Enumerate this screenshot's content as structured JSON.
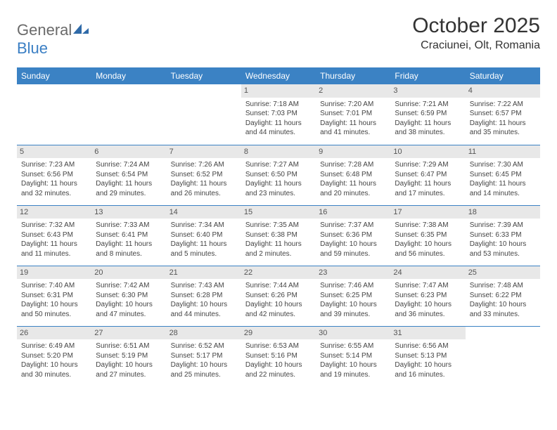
{
  "brand": {
    "part1": "General",
    "part2": "Blue"
  },
  "title": "October 2025",
  "location": "Craciunei, Olt, Romania",
  "colors": {
    "header_bg": "#3b82c4",
    "header_text": "#ffffff",
    "daynum_bg": "#e8e8e8",
    "border": "#3b82c4",
    "logo_gray": "#6a6a6a",
    "logo_blue": "#3b7fc4"
  },
  "weekdays": [
    "Sunday",
    "Monday",
    "Tuesday",
    "Wednesday",
    "Thursday",
    "Friday",
    "Saturday"
  ],
  "weeks": [
    [
      {
        "day": "",
        "lines": []
      },
      {
        "day": "",
        "lines": []
      },
      {
        "day": "",
        "lines": []
      },
      {
        "day": "1",
        "lines": [
          "Sunrise: 7:18 AM",
          "Sunset: 7:03 PM",
          "Daylight: 11 hours",
          "and 44 minutes."
        ]
      },
      {
        "day": "2",
        "lines": [
          "Sunrise: 7:20 AM",
          "Sunset: 7:01 PM",
          "Daylight: 11 hours",
          "and 41 minutes."
        ]
      },
      {
        "day": "3",
        "lines": [
          "Sunrise: 7:21 AM",
          "Sunset: 6:59 PM",
          "Daylight: 11 hours",
          "and 38 minutes."
        ]
      },
      {
        "day": "4",
        "lines": [
          "Sunrise: 7:22 AM",
          "Sunset: 6:57 PM",
          "Daylight: 11 hours",
          "and 35 minutes."
        ]
      }
    ],
    [
      {
        "day": "5",
        "lines": [
          "Sunrise: 7:23 AM",
          "Sunset: 6:56 PM",
          "Daylight: 11 hours",
          "and 32 minutes."
        ]
      },
      {
        "day": "6",
        "lines": [
          "Sunrise: 7:24 AM",
          "Sunset: 6:54 PM",
          "Daylight: 11 hours",
          "and 29 minutes."
        ]
      },
      {
        "day": "7",
        "lines": [
          "Sunrise: 7:26 AM",
          "Sunset: 6:52 PM",
          "Daylight: 11 hours",
          "and 26 minutes."
        ]
      },
      {
        "day": "8",
        "lines": [
          "Sunrise: 7:27 AM",
          "Sunset: 6:50 PM",
          "Daylight: 11 hours",
          "and 23 minutes."
        ]
      },
      {
        "day": "9",
        "lines": [
          "Sunrise: 7:28 AM",
          "Sunset: 6:48 PM",
          "Daylight: 11 hours",
          "and 20 minutes."
        ]
      },
      {
        "day": "10",
        "lines": [
          "Sunrise: 7:29 AM",
          "Sunset: 6:47 PM",
          "Daylight: 11 hours",
          "and 17 minutes."
        ]
      },
      {
        "day": "11",
        "lines": [
          "Sunrise: 7:30 AM",
          "Sunset: 6:45 PM",
          "Daylight: 11 hours",
          "and 14 minutes."
        ]
      }
    ],
    [
      {
        "day": "12",
        "lines": [
          "Sunrise: 7:32 AM",
          "Sunset: 6:43 PM",
          "Daylight: 11 hours",
          "and 11 minutes."
        ]
      },
      {
        "day": "13",
        "lines": [
          "Sunrise: 7:33 AM",
          "Sunset: 6:41 PM",
          "Daylight: 11 hours",
          "and 8 minutes."
        ]
      },
      {
        "day": "14",
        "lines": [
          "Sunrise: 7:34 AM",
          "Sunset: 6:40 PM",
          "Daylight: 11 hours",
          "and 5 minutes."
        ]
      },
      {
        "day": "15",
        "lines": [
          "Sunrise: 7:35 AM",
          "Sunset: 6:38 PM",
          "Daylight: 11 hours",
          "and 2 minutes."
        ]
      },
      {
        "day": "16",
        "lines": [
          "Sunrise: 7:37 AM",
          "Sunset: 6:36 PM",
          "Daylight: 10 hours",
          "and 59 minutes."
        ]
      },
      {
        "day": "17",
        "lines": [
          "Sunrise: 7:38 AM",
          "Sunset: 6:35 PM",
          "Daylight: 10 hours",
          "and 56 minutes."
        ]
      },
      {
        "day": "18",
        "lines": [
          "Sunrise: 7:39 AM",
          "Sunset: 6:33 PM",
          "Daylight: 10 hours",
          "and 53 minutes."
        ]
      }
    ],
    [
      {
        "day": "19",
        "lines": [
          "Sunrise: 7:40 AM",
          "Sunset: 6:31 PM",
          "Daylight: 10 hours",
          "and 50 minutes."
        ]
      },
      {
        "day": "20",
        "lines": [
          "Sunrise: 7:42 AM",
          "Sunset: 6:30 PM",
          "Daylight: 10 hours",
          "and 47 minutes."
        ]
      },
      {
        "day": "21",
        "lines": [
          "Sunrise: 7:43 AM",
          "Sunset: 6:28 PM",
          "Daylight: 10 hours",
          "and 44 minutes."
        ]
      },
      {
        "day": "22",
        "lines": [
          "Sunrise: 7:44 AM",
          "Sunset: 6:26 PM",
          "Daylight: 10 hours",
          "and 42 minutes."
        ]
      },
      {
        "day": "23",
        "lines": [
          "Sunrise: 7:46 AM",
          "Sunset: 6:25 PM",
          "Daylight: 10 hours",
          "and 39 minutes."
        ]
      },
      {
        "day": "24",
        "lines": [
          "Sunrise: 7:47 AM",
          "Sunset: 6:23 PM",
          "Daylight: 10 hours",
          "and 36 minutes."
        ]
      },
      {
        "day": "25",
        "lines": [
          "Sunrise: 7:48 AM",
          "Sunset: 6:22 PM",
          "Daylight: 10 hours",
          "and 33 minutes."
        ]
      }
    ],
    [
      {
        "day": "26",
        "lines": [
          "Sunrise: 6:49 AM",
          "Sunset: 5:20 PM",
          "Daylight: 10 hours",
          "and 30 minutes."
        ]
      },
      {
        "day": "27",
        "lines": [
          "Sunrise: 6:51 AM",
          "Sunset: 5:19 PM",
          "Daylight: 10 hours",
          "and 27 minutes."
        ]
      },
      {
        "day": "28",
        "lines": [
          "Sunrise: 6:52 AM",
          "Sunset: 5:17 PM",
          "Daylight: 10 hours",
          "and 25 minutes."
        ]
      },
      {
        "day": "29",
        "lines": [
          "Sunrise: 6:53 AM",
          "Sunset: 5:16 PM",
          "Daylight: 10 hours",
          "and 22 minutes."
        ]
      },
      {
        "day": "30",
        "lines": [
          "Sunrise: 6:55 AM",
          "Sunset: 5:14 PM",
          "Daylight: 10 hours",
          "and 19 minutes."
        ]
      },
      {
        "day": "31",
        "lines": [
          "Sunrise: 6:56 AM",
          "Sunset: 5:13 PM",
          "Daylight: 10 hours",
          "and 16 minutes."
        ]
      },
      {
        "day": "",
        "lines": []
      }
    ]
  ]
}
